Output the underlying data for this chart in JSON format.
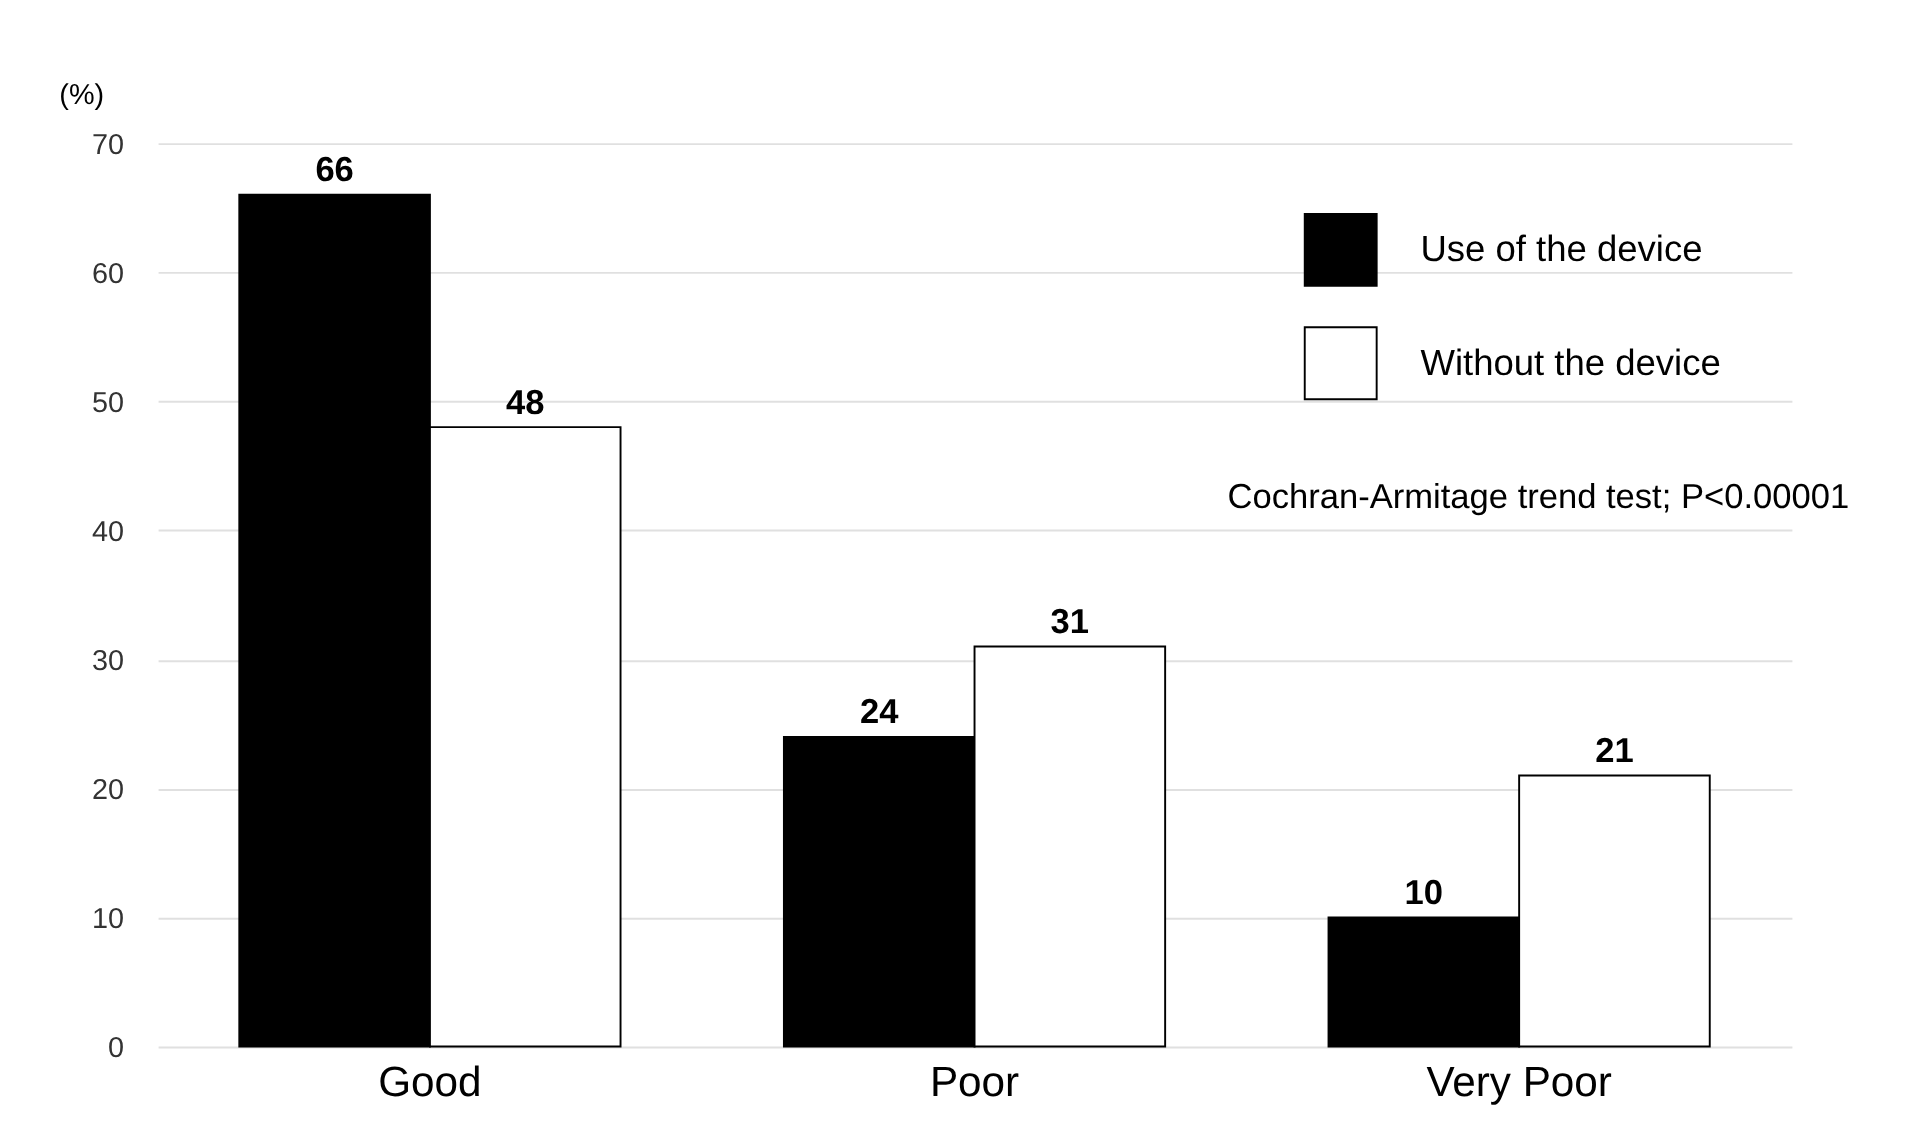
{
  "chart_data": {
    "type": "bar",
    "ylabel": "(%)",
    "categories": [
      "Good",
      "Poor",
      "Very Poor"
    ],
    "series": [
      {
        "name": "Use of the device",
        "color": "#000000",
        "values": [
          66,
          24,
          10
        ]
      },
      {
        "name": "Without the device",
        "color": "#ffffff",
        "values": [
          48,
          31,
          21
        ]
      }
    ],
    "ylim": [
      0,
      70
    ],
    "yticks": [
      0,
      10,
      20,
      30,
      40,
      50,
      60,
      70
    ],
    "grid": "y",
    "legend": "top right",
    "data_labels": true,
    "annotations": [
      "Cochran-Armitage trend test; P<0.00001"
    ]
  }
}
